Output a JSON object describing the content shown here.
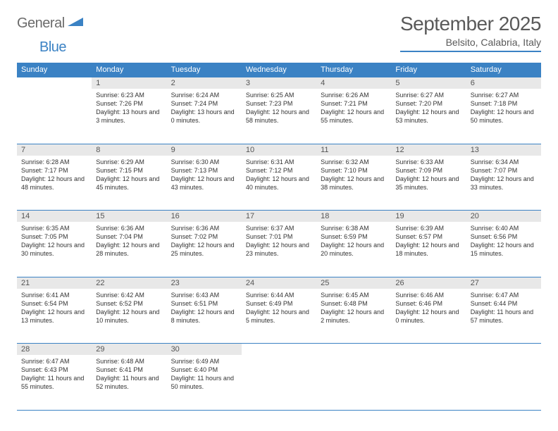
{
  "brand": {
    "name1": "General",
    "name2": "Blue"
  },
  "title": "September 2025",
  "location": "Belsito, Calabria, Italy",
  "header_bg": "#3b82c4",
  "day_num_bg": "#e8e8e8",
  "text_color": "#333333",
  "muted_color": "#5a5a5a",
  "weekdays": [
    "Sunday",
    "Monday",
    "Tuesday",
    "Wednesday",
    "Thursday",
    "Friday",
    "Saturday"
  ],
  "weeks": [
    [
      null,
      {
        "n": "1",
        "sunrise": "Sunrise: 6:23 AM",
        "sunset": "Sunset: 7:26 PM",
        "daylight": "Daylight: 13 hours and 3 minutes."
      },
      {
        "n": "2",
        "sunrise": "Sunrise: 6:24 AM",
        "sunset": "Sunset: 7:24 PM",
        "daylight": "Daylight: 13 hours and 0 minutes."
      },
      {
        "n": "3",
        "sunrise": "Sunrise: 6:25 AM",
        "sunset": "Sunset: 7:23 PM",
        "daylight": "Daylight: 12 hours and 58 minutes."
      },
      {
        "n": "4",
        "sunrise": "Sunrise: 6:26 AM",
        "sunset": "Sunset: 7:21 PM",
        "daylight": "Daylight: 12 hours and 55 minutes."
      },
      {
        "n": "5",
        "sunrise": "Sunrise: 6:27 AM",
        "sunset": "Sunset: 7:20 PM",
        "daylight": "Daylight: 12 hours and 53 minutes."
      },
      {
        "n": "6",
        "sunrise": "Sunrise: 6:27 AM",
        "sunset": "Sunset: 7:18 PM",
        "daylight": "Daylight: 12 hours and 50 minutes."
      }
    ],
    [
      {
        "n": "7",
        "sunrise": "Sunrise: 6:28 AM",
        "sunset": "Sunset: 7:17 PM",
        "daylight": "Daylight: 12 hours and 48 minutes."
      },
      {
        "n": "8",
        "sunrise": "Sunrise: 6:29 AM",
        "sunset": "Sunset: 7:15 PM",
        "daylight": "Daylight: 12 hours and 45 minutes."
      },
      {
        "n": "9",
        "sunrise": "Sunrise: 6:30 AM",
        "sunset": "Sunset: 7:13 PM",
        "daylight": "Daylight: 12 hours and 43 minutes."
      },
      {
        "n": "10",
        "sunrise": "Sunrise: 6:31 AM",
        "sunset": "Sunset: 7:12 PM",
        "daylight": "Daylight: 12 hours and 40 minutes."
      },
      {
        "n": "11",
        "sunrise": "Sunrise: 6:32 AM",
        "sunset": "Sunset: 7:10 PM",
        "daylight": "Daylight: 12 hours and 38 minutes."
      },
      {
        "n": "12",
        "sunrise": "Sunrise: 6:33 AM",
        "sunset": "Sunset: 7:09 PM",
        "daylight": "Daylight: 12 hours and 35 minutes."
      },
      {
        "n": "13",
        "sunrise": "Sunrise: 6:34 AM",
        "sunset": "Sunset: 7:07 PM",
        "daylight": "Daylight: 12 hours and 33 minutes."
      }
    ],
    [
      {
        "n": "14",
        "sunrise": "Sunrise: 6:35 AM",
        "sunset": "Sunset: 7:05 PM",
        "daylight": "Daylight: 12 hours and 30 minutes."
      },
      {
        "n": "15",
        "sunrise": "Sunrise: 6:36 AM",
        "sunset": "Sunset: 7:04 PM",
        "daylight": "Daylight: 12 hours and 28 minutes."
      },
      {
        "n": "16",
        "sunrise": "Sunrise: 6:36 AM",
        "sunset": "Sunset: 7:02 PM",
        "daylight": "Daylight: 12 hours and 25 minutes."
      },
      {
        "n": "17",
        "sunrise": "Sunrise: 6:37 AM",
        "sunset": "Sunset: 7:01 PM",
        "daylight": "Daylight: 12 hours and 23 minutes."
      },
      {
        "n": "18",
        "sunrise": "Sunrise: 6:38 AM",
        "sunset": "Sunset: 6:59 PM",
        "daylight": "Daylight: 12 hours and 20 minutes."
      },
      {
        "n": "19",
        "sunrise": "Sunrise: 6:39 AM",
        "sunset": "Sunset: 6:57 PM",
        "daylight": "Daylight: 12 hours and 18 minutes."
      },
      {
        "n": "20",
        "sunrise": "Sunrise: 6:40 AM",
        "sunset": "Sunset: 6:56 PM",
        "daylight": "Daylight: 12 hours and 15 minutes."
      }
    ],
    [
      {
        "n": "21",
        "sunrise": "Sunrise: 6:41 AM",
        "sunset": "Sunset: 6:54 PM",
        "daylight": "Daylight: 12 hours and 13 minutes."
      },
      {
        "n": "22",
        "sunrise": "Sunrise: 6:42 AM",
        "sunset": "Sunset: 6:52 PM",
        "daylight": "Daylight: 12 hours and 10 minutes."
      },
      {
        "n": "23",
        "sunrise": "Sunrise: 6:43 AM",
        "sunset": "Sunset: 6:51 PM",
        "daylight": "Daylight: 12 hours and 8 minutes."
      },
      {
        "n": "24",
        "sunrise": "Sunrise: 6:44 AM",
        "sunset": "Sunset: 6:49 PM",
        "daylight": "Daylight: 12 hours and 5 minutes."
      },
      {
        "n": "25",
        "sunrise": "Sunrise: 6:45 AM",
        "sunset": "Sunset: 6:48 PM",
        "daylight": "Daylight: 12 hours and 2 minutes."
      },
      {
        "n": "26",
        "sunrise": "Sunrise: 6:46 AM",
        "sunset": "Sunset: 6:46 PM",
        "daylight": "Daylight: 12 hours and 0 minutes."
      },
      {
        "n": "27",
        "sunrise": "Sunrise: 6:47 AM",
        "sunset": "Sunset: 6:44 PM",
        "daylight": "Daylight: 11 hours and 57 minutes."
      }
    ],
    [
      {
        "n": "28",
        "sunrise": "Sunrise: 6:47 AM",
        "sunset": "Sunset: 6:43 PM",
        "daylight": "Daylight: 11 hours and 55 minutes."
      },
      {
        "n": "29",
        "sunrise": "Sunrise: 6:48 AM",
        "sunset": "Sunset: 6:41 PM",
        "daylight": "Daylight: 11 hours and 52 minutes."
      },
      {
        "n": "30",
        "sunrise": "Sunrise: 6:49 AM",
        "sunset": "Sunset: 6:40 PM",
        "daylight": "Daylight: 11 hours and 50 minutes."
      },
      null,
      null,
      null,
      null
    ]
  ]
}
